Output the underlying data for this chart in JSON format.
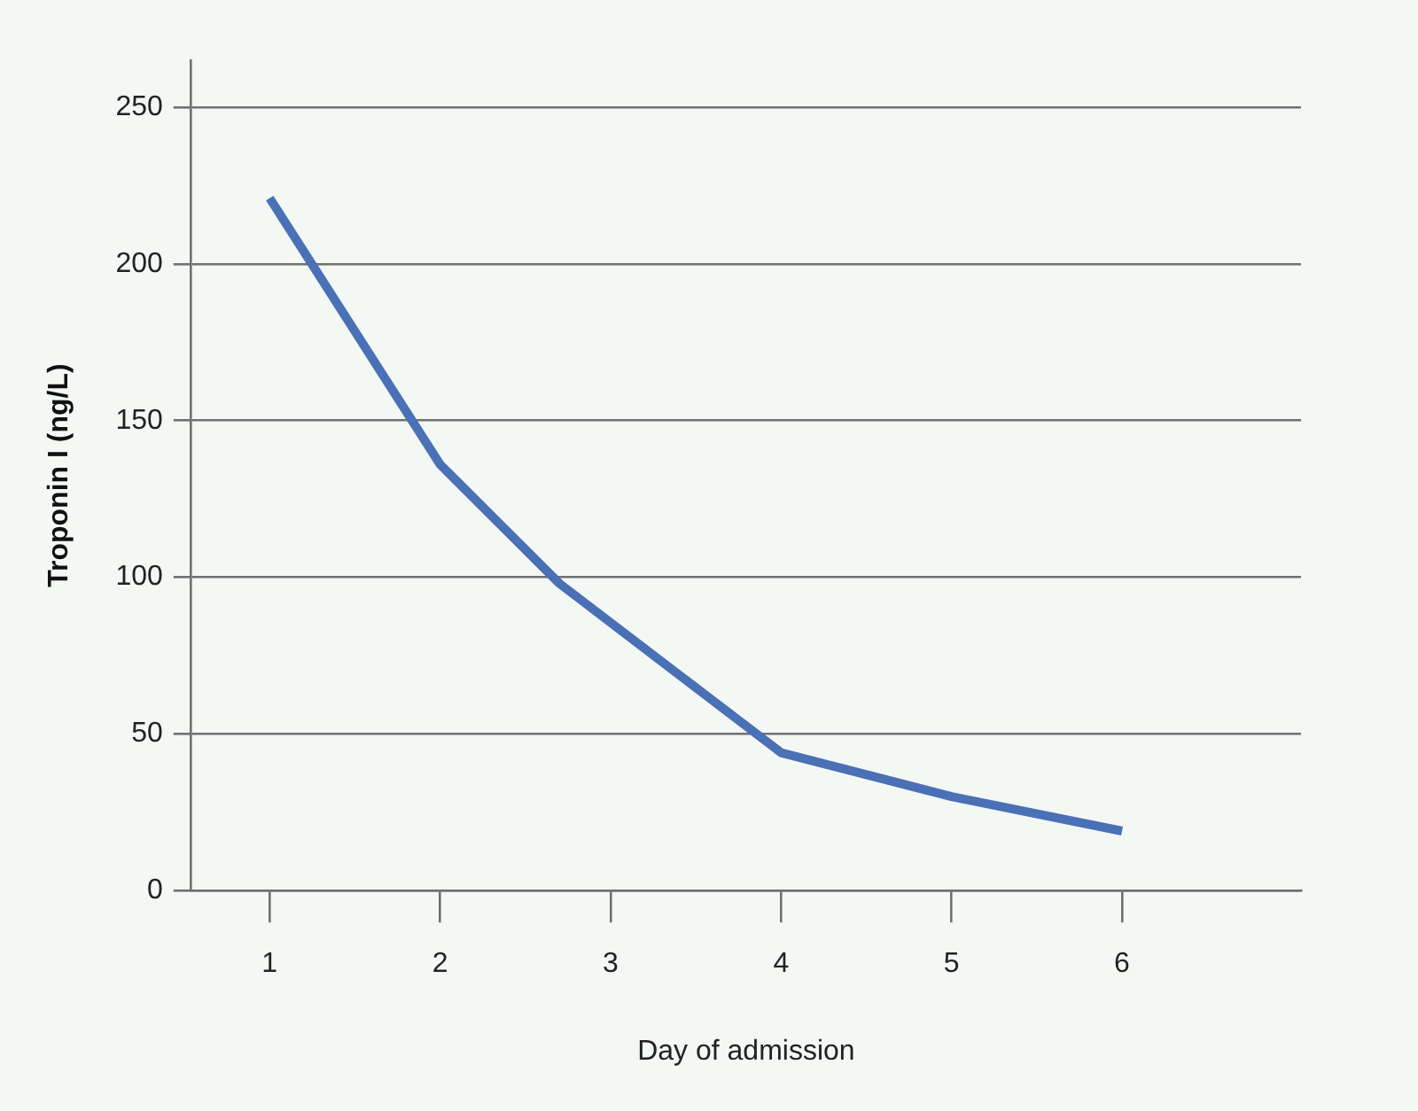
{
  "chart_data": {
    "type": "line",
    "xlabel": "Day of admission",
    "ylabel": "Troponin I (ng/L)",
    "x": [
      1,
      2,
      2.7,
      4,
      5,
      6
    ],
    "series": [
      {
        "color": "#4a70b6",
        "values": [
          221,
          136,
          98,
          44,
          30,
          19
        ]
      }
    ],
    "xlim": [
      0.54,
      7.05
    ],
    "xticks": [
      1,
      2,
      3,
      4,
      5,
      6
    ],
    "ylim": [
      0,
      265
    ],
    "yticks": [
      0,
      50,
      100,
      150,
      200,
      250
    ],
    "grid": "y",
    "legend": false,
    "marker": "none",
    "line_style": "solid"
  }
}
